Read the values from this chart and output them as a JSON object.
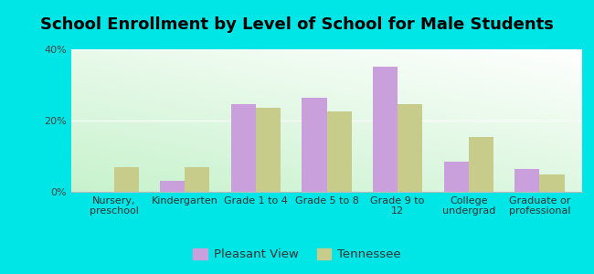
{
  "title": "School Enrollment by Level of School for Male Students",
  "categories": [
    "Nursery,\npreschool",
    "Kindergarten",
    "Grade 1 to 4",
    "Grade 5 to 8",
    "Grade 9 to\n12",
    "College\nundergrad",
    "Graduate or\nprofessional"
  ],
  "pleasant_view": [
    0.0,
    3.0,
    24.5,
    26.5,
    35.0,
    8.5,
    6.5
  ],
  "tennessee": [
    7.0,
    7.0,
    23.5,
    22.5,
    24.5,
    15.5,
    5.0
  ],
  "pleasant_view_color": "#c9a0dc",
  "tennessee_color": "#c8cc8a",
  "background_color": "#00e5e5",
  "ylim": [
    0,
    40
  ],
  "yticks": [
    0,
    20,
    40
  ],
  "ytick_labels": [
    "0%",
    "20%",
    "40%"
  ],
  "bar_width": 0.35,
  "legend_labels": [
    "Pleasant View",
    "Tennessee"
  ],
  "title_fontsize": 13,
  "tick_fontsize": 8,
  "legend_fontsize": 9.5
}
